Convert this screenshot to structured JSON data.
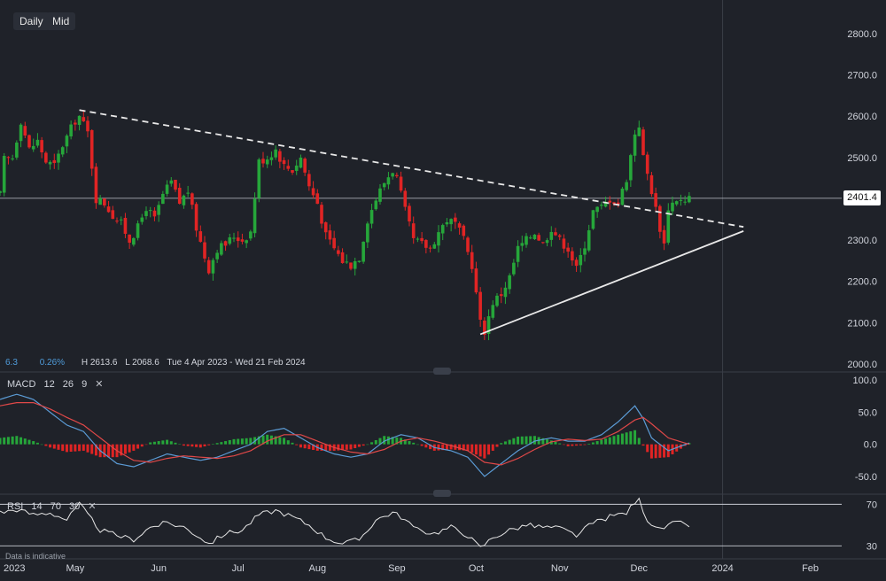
{
  "toolbar": {
    "timeframe": "Daily",
    "price_type": "Mid"
  },
  "stats": {
    "left_value": "6.3",
    "pct": "0.26%",
    "high": "H 2613.6",
    "low": "L 2068.6",
    "range": "Tue 4 Apr 2023 - Wed 21 Feb 2024"
  },
  "last_price_label": "2401.4",
  "macd": {
    "label": "MACD",
    "params": [
      "12",
      "26",
      "9"
    ]
  },
  "rsi": {
    "label": "RSI",
    "params": [
      "14",
      "70",
      "30"
    ]
  },
  "footer_note": "Data is indicative",
  "colors": {
    "background": "#1f2229",
    "up": "#26a63a",
    "down": "#e02424",
    "macd_line": "#5b9bd5",
    "signal_line": "#e04848",
    "trendline": "#e8e8e8",
    "rsi_line": "#e6e6e6"
  },
  "chart_data": {
    "type": "candlestick",
    "x_axis": {
      "ticks": [
        "2023",
        "May",
        "Jun",
        "Jul",
        "Aug",
        "Sep",
        "Oct",
        "Nov",
        "Dec",
        "2024",
        "Feb"
      ],
      "tick_pos": [
        0,
        18,
        38,
        57,
        76,
        95,
        114,
        134,
        153,
        173,
        194
      ],
      "range": [
        0,
        210
      ]
    },
    "price": {
      "yticks": [
        2000,
        2100,
        2200,
        2300,
        2400,
        2500,
        2600,
        2700,
        2800
      ],
      "ylim": [
        1985,
        2860
      ],
      "last_price": 2401.4,
      "anchors": [
        [
          0,
          2410
        ],
        [
          1,
          2495
        ],
        [
          3,
          2500
        ],
        [
          5,
          2590
        ],
        [
          7,
          2520
        ],
        [
          9,
          2540
        ],
        [
          11,
          2490
        ],
        [
          13,
          2480
        ],
        [
          15,
          2530
        ],
        [
          17,
          2570
        ],
        [
          18,
          2590
        ],
        [
          19,
          2600
        ],
        [
          21,
          2560
        ],
        [
          22,
          2480
        ],
        [
          23,
          2400
        ],
        [
          25,
          2390
        ],
        [
          27,
          2360
        ],
        [
          29,
          2340
        ],
        [
          31,
          2300
        ],
        [
          33,
          2330
        ],
        [
          35,
          2380
        ],
        [
          37,
          2350
        ],
        [
          39,
          2410
        ],
        [
          41,
          2440
        ],
        [
          43,
          2390
        ],
        [
          45,
          2420
        ],
        [
          47,
          2330
        ],
        [
          49,
          2260
        ],
        [
          50,
          2230
        ],
        [
          52,
          2280
        ],
        [
          54,
          2290
        ],
        [
          56,
          2310
        ],
        [
          58,
          2300
        ],
        [
          60,
          2320
        ],
        [
          62,
          2490
        ],
        [
          64,
          2500
        ],
        [
          66,
          2520
        ],
        [
          68,
          2480
        ],
        [
          70,
          2470
        ],
        [
          72,
          2500
        ],
        [
          74,
          2430
        ],
        [
          76,
          2390
        ],
        [
          78,
          2310
        ],
        [
          80,
          2280
        ],
        [
          82,
          2250
        ],
        [
          84,
          2240
        ],
        [
          86,
          2260
        ],
        [
          88,
          2350
        ],
        [
          90,
          2400
        ],
        [
          92,
          2440
        ],
        [
          94,
          2470
        ],
        [
          95,
          2450
        ],
        [
          97,
          2370
        ],
        [
          99,
          2300
        ],
        [
          101,
          2290
        ],
        [
          103,
          2280
        ],
        [
          105,
          2320
        ],
        [
          107,
          2350
        ],
        [
          109,
          2340
        ],
        [
          111,
          2300
        ],
        [
          113,
          2240
        ],
        [
          115,
          2100
        ],
        [
          116,
          2080
        ],
        [
          118,
          2150
        ],
        [
          120,
          2170
        ],
        [
          122,
          2210
        ],
        [
          124,
          2280
        ],
        [
          126,
          2300
        ],
        [
          128,
          2320
        ],
        [
          130,
          2290
        ],
        [
          132,
          2330
        ],
        [
          134,
          2300
        ],
        [
          136,
          2280
        ],
        [
          138,
          2230
        ],
        [
          140,
          2290
        ],
        [
          142,
          2370
        ],
        [
          144,
          2380
        ],
        [
          146,
          2400
        ],
        [
          148,
          2390
        ],
        [
          150,
          2450
        ],
        [
          152,
          2560
        ],
        [
          153,
          2580
        ],
        [
          154,
          2500
        ],
        [
          156,
          2420
        ],
        [
          158,
          2330
        ],
        [
          159,
          2290
        ],
        [
          160,
          2380
        ],
        [
          162,
          2400
        ],
        [
          164,
          2390
        ],
        [
          165,
          2401.4
        ]
      ],
      "trendlines": [
        {
          "style": "dashed",
          "from": [
            19,
            2615
          ],
          "to": [
            178,
            2332
          ]
        },
        {
          "style": "solid",
          "from": [
            115,
            2072
          ],
          "to": [
            178,
            2322
          ]
        }
      ]
    },
    "macd": {
      "params": [
        12,
        26,
        9
      ],
      "yticks": [
        -50.0,
        0.0,
        50.0,
        100.0
      ],
      "ylim": [
        -75,
        110
      ],
      "macd_anchors": [
        [
          0,
          70
        ],
        [
          4,
          78
        ],
        [
          8,
          70
        ],
        [
          12,
          50
        ],
        [
          16,
          30
        ],
        [
          20,
          20
        ],
        [
          24,
          -10
        ],
        [
          28,
          -30
        ],
        [
          32,
          -35
        ],
        [
          36,
          -25
        ],
        [
          40,
          -15
        ],
        [
          44,
          -20
        ],
        [
          48,
          -25
        ],
        [
          52,
          -20
        ],
        [
          56,
          -10
        ],
        [
          60,
          0
        ],
        [
          64,
          20
        ],
        [
          68,
          25
        ],
        [
          72,
          10
        ],
        [
          76,
          -5
        ],
        [
          80,
          -15
        ],
        [
          84,
          -20
        ],
        [
          88,
          -15
        ],
        [
          92,
          5
        ],
        [
          96,
          15
        ],
        [
          100,
          10
        ],
        [
          104,
          -5
        ],
        [
          108,
          -10
        ],
        [
          112,
          -20
        ],
        [
          116,
          -50
        ],
        [
          120,
          -30
        ],
        [
          124,
          -10
        ],
        [
          128,
          5
        ],
        [
          132,
          10
        ],
        [
          136,
          5
        ],
        [
          140,
          5
        ],
        [
          144,
          15
        ],
        [
          148,
          35
        ],
        [
          152,
          60
        ],
        [
          154,
          40
        ],
        [
          156,
          10
        ],
        [
          160,
          -10
        ],
        [
          165,
          2
        ]
      ],
      "signal_anchors": [
        [
          0,
          60
        ],
        [
          4,
          65
        ],
        [
          8,
          65
        ],
        [
          12,
          55
        ],
        [
          16,
          42
        ],
        [
          20,
          30
        ],
        [
          24,
          10
        ],
        [
          28,
          -10
        ],
        [
          32,
          -25
        ],
        [
          36,
          -28
        ],
        [
          40,
          -22
        ],
        [
          44,
          -18
        ],
        [
          48,
          -20
        ],
        [
          52,
          -22
        ],
        [
          56,
          -18
        ],
        [
          60,
          -10
        ],
        [
          64,
          5
        ],
        [
          68,
          15
        ],
        [
          72,
          15
        ],
        [
          76,
          5
        ],
        [
          80,
          -5
        ],
        [
          84,
          -12
        ],
        [
          88,
          -15
        ],
        [
          92,
          -8
        ],
        [
          96,
          5
        ],
        [
          100,
          10
        ],
        [
          104,
          5
        ],
        [
          108,
          -2
        ],
        [
          112,
          -10
        ],
        [
          116,
          -28
        ],
        [
          120,
          -32
        ],
        [
          124,
          -22
        ],
        [
          128,
          -8
        ],
        [
          132,
          4
        ],
        [
          136,
          8
        ],
        [
          140,
          6
        ],
        [
          144,
          8
        ],
        [
          148,
          20
        ],
        [
          152,
          38
        ],
        [
          154,
          42
        ],
        [
          156,
          32
        ],
        [
          160,
          10
        ],
        [
          165,
          0
        ]
      ]
    },
    "rsi": {
      "params": [
        14,
        70,
        30
      ],
      "levels": [
        30,
        70
      ],
      "ylim": [
        20,
        78
      ],
      "anchors": [
        [
          0,
          62
        ],
        [
          4,
          65
        ],
        [
          8,
          60
        ],
        [
          12,
          62
        ],
        [
          16,
          55
        ],
        [
          19,
          70
        ],
        [
          21,
          60
        ],
        [
          24,
          45
        ],
        [
          28,
          40
        ],
        [
          32,
          36
        ],
        [
          36,
          48
        ],
        [
          40,
          52
        ],
        [
          44,
          48
        ],
        [
          48,
          38
        ],
        [
          50,
          32
        ],
        [
          54,
          42
        ],
        [
          58,
          45
        ],
        [
          62,
          60
        ],
        [
          64,
          62
        ],
        [
          66,
          64
        ],
        [
          70,
          58
        ],
        [
          74,
          50
        ],
        [
          78,
          38
        ],
        [
          82,
          32
        ],
        [
          86,
          36
        ],
        [
          90,
          55
        ],
        [
          94,
          62
        ],
        [
          96,
          58
        ],
        [
          100,
          45
        ],
        [
          104,
          42
        ],
        [
          108,
          48
        ],
        [
          112,
          40
        ],
        [
          115,
          28
        ],
        [
          118,
          38
        ],
        [
          122,
          45
        ],
        [
          126,
          50
        ],
        [
          130,
          48
        ],
        [
          134,
          47
        ],
        [
          138,
          40
        ],
        [
          142,
          52
        ],
        [
          146,
          58
        ],
        [
          150,
          62
        ],
        [
          152,
          72
        ],
        [
          153,
          74
        ],
        [
          155,
          55
        ],
        [
          158,
          45
        ],
        [
          160,
          50
        ],
        [
          162,
          52
        ],
        [
          165,
          50
        ]
      ]
    }
  }
}
